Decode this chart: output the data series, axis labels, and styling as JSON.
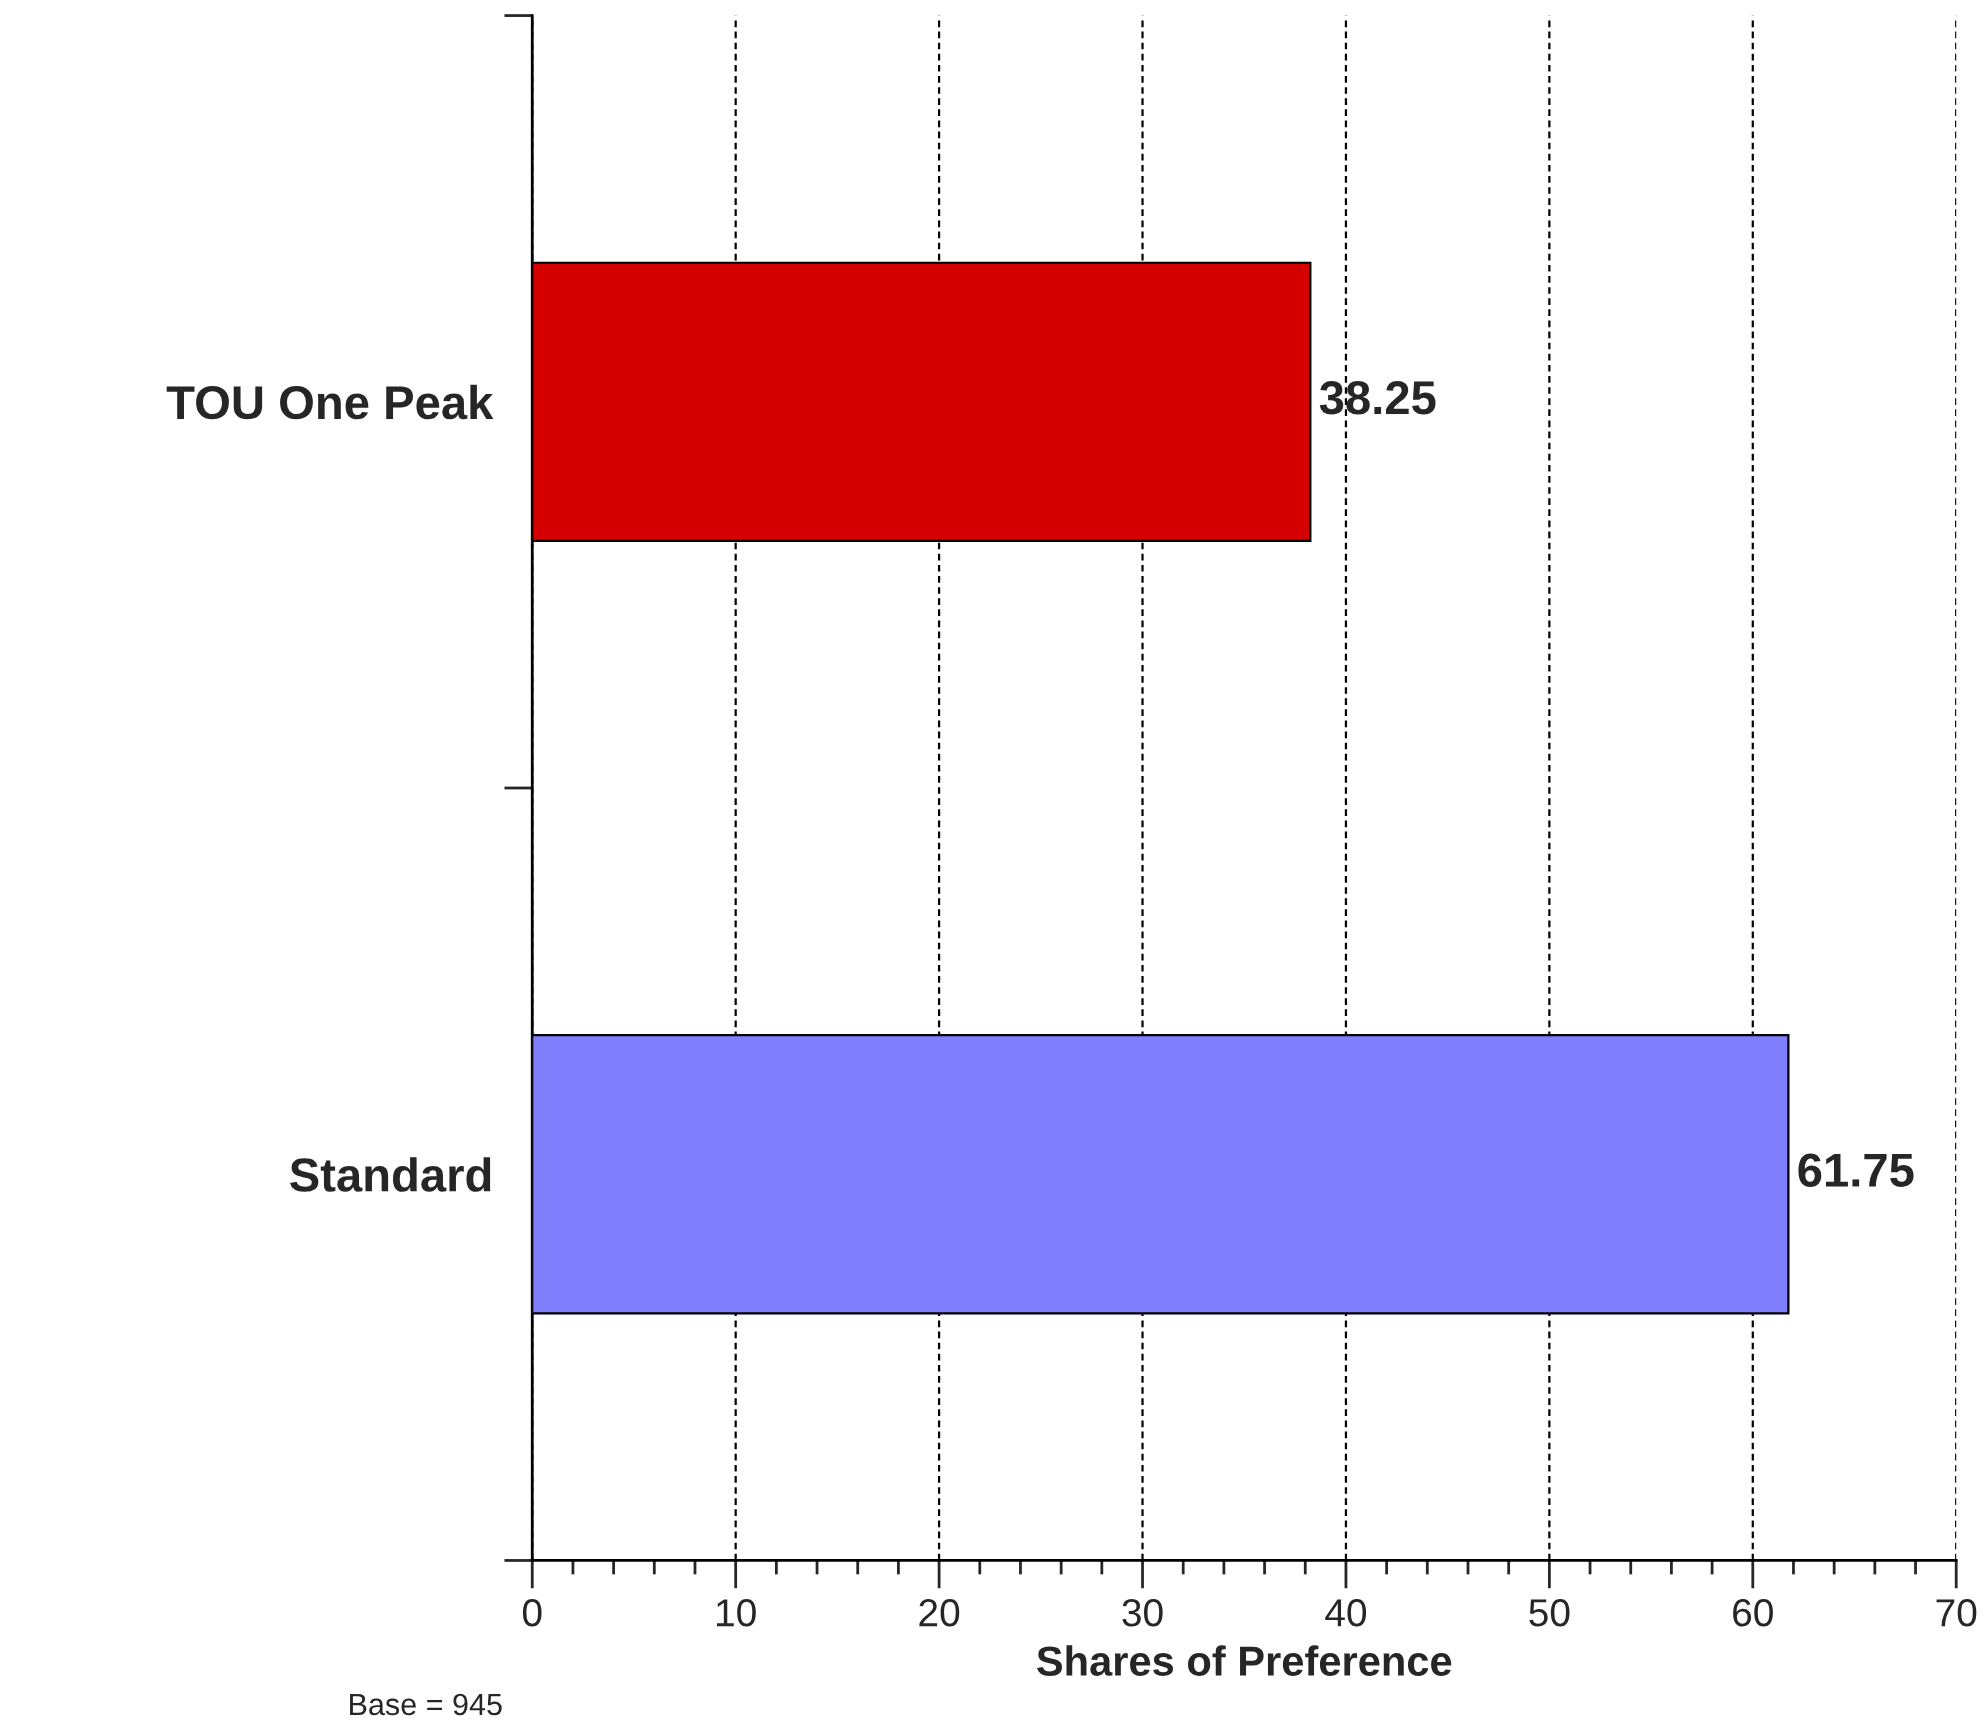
{
  "chart_data": {
    "type": "bar",
    "orientation": "horizontal",
    "xlabel": "Shares of Preference",
    "categories": [
      "TOU One Peak",
      "Standard"
    ],
    "values": [
      38.25,
      61.75
    ],
    "colors": [
      "#d40000",
      "#8080ff"
    ],
    "xlim": [
      0,
      70
    ],
    "xticks": [
      0,
      10,
      20,
      30,
      40,
      50,
      60,
      70
    ],
    "grid": "x",
    "data_labels": true,
    "annotations": [
      "Base = 945"
    ]
  }
}
